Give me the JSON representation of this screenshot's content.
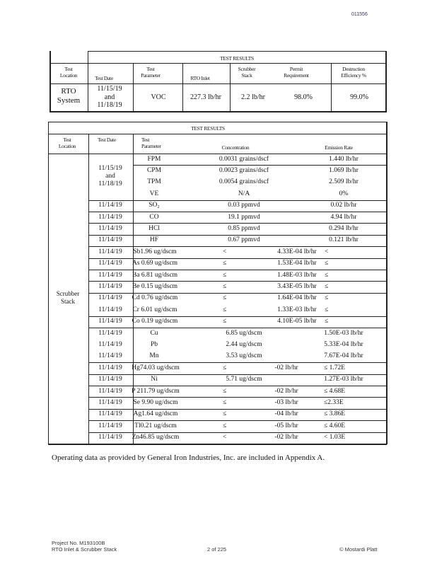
{
  "page_number_top": "011556",
  "table1": {
    "title": "TEST RESULTS",
    "headers": {
      "location": [
        "Test",
        "Location"
      ],
      "date": "Test Date",
      "parameter": [
        "Test",
        "Parameter"
      ],
      "rto_inlet": "RTO Inlet",
      "scrubber_stack": [
        "Scrubber",
        "Stack"
      ],
      "permit": [
        "Permit",
        "Requirement"
      ],
      "destruction": [
        "Destruction",
        "Efficiency %"
      ]
    },
    "row": {
      "location": [
        "RTO",
        "System"
      ],
      "date": [
        "11/15/19",
        "and",
        "11/18/19"
      ],
      "parameter": "VOC",
      "rto_inlet": "227.3 lb/hr",
      "scrubber_stack": "2.2 lb/hr",
      "permit": "98.0%",
      "destruction": "99.0%"
    }
  },
  "table2": {
    "title": "TEST RESULTS",
    "headers": {
      "location": [
        "Test",
        "Location"
      ],
      "date": "Test Date",
      "parameter": [
        "Test",
        "Parameter"
      ],
      "concentration": "Concentration",
      "emission_rate": "Emission Rate"
    },
    "location": [
      "Scrubber",
      "Stack"
    ],
    "group_date": [
      "11/15/19",
      "and",
      "11/18/19"
    ],
    "rows": [
      {
        "date": "",
        "param": "FPM",
        "conc": "0.0031 grains/dscf",
        "rate": "1.440 lb/hr"
      },
      {
        "date": "",
        "param": "CPM",
        "conc": "0.0023 grains/dscf",
        "rate": "1.069 lb/hr"
      },
      {
        "date": "",
        "param": "TPM",
        "conc": "0.0054 grains/dscf",
        "rate": "2.509 lb/hr"
      },
      {
        "date": "",
        "param": "VE",
        "conc": "N/A",
        "rate": "0%"
      },
      {
        "date": "11/14/19",
        "param": "SO₂",
        "conc": "0.03 ppmvd",
        "rate": "0.02 lb/hr"
      },
      {
        "date": "11/14/19",
        "param": "CO",
        "conc": "19.1 ppmvd",
        "rate": "4.94 lb/hr"
      },
      {
        "date": "11/14/19",
        "param": "HCl",
        "conc": "0.85 ppmvd",
        "rate": "0.294 lb/hr"
      },
      {
        "date": "11/14/19",
        "param": "HF",
        "conc": "0.67 ppmvd",
        "rate": "0.121 lb/hr"
      },
      {
        "date": "11/14/19",
        "a": "Sb1.96 ug/dscm",
        "b": "<",
        "c": "4.33E-04 lb/hr",
        "d": "<"
      },
      {
        "date": "11/14/19",
        "a": "As 0.69 ug/dscm",
        "b": "≤",
        "c": "1.53E-04 lb/hr",
        "d": "≤"
      },
      {
        "date": "11/14/19",
        "a": "Ba 6.81 ug/dscm",
        "b": "≤",
        "c": "1.48E-03 lb/hr",
        "d": "≤"
      },
      {
        "date": "11/14/19",
        "a": "Be 0.15 ug/dscm",
        "b": "≤",
        "c": "3.43E-05 lb/hr",
        "d": "≤"
      },
      {
        "date": "11/14/19",
        "a": "Cd 0.76 ug/dscm",
        "b": "≤",
        "c": "1.64E-04 lb/hr",
        "d": "≤"
      },
      {
        "date": "11/14/19",
        "a": "Cr 6.01 ug/dscm",
        "b": "≤",
        "c": "1.33E-03 lb/hr",
        "d": "≤"
      },
      {
        "date": "11/14/19",
        "a": "Co 0.19 ug/dscm",
        "b": "≤",
        "c": "4.10E-05 lb/hr",
        "d": "≤"
      },
      {
        "date": "11/14/19",
        "param": "Cu",
        "conc": "6.85 ug/dscm",
        "rate": "1.50E-03 lb/hr"
      },
      {
        "date": "11/14/19",
        "param": "Pb",
        "conc": "2.44 ug/dscm",
        "rate": "5.33E-04 lb/hr"
      },
      {
        "date": "11/14/19",
        "param": "Mn",
        "conc": "3.53 ug/dscm",
        "rate": "7.67E-04 lb/hr"
      },
      {
        "date": "11/14/19",
        "e": "Hg74.03 ug/dscm",
        "f": "≤",
        "g": "-02 lb/hr",
        "h": "≤ 1.72E"
      },
      {
        "date": "11/14/19",
        "param": "Ni",
        "conc": "5.71 ug/dscm",
        "rate": "1.27E-03 lb/hr"
      },
      {
        "date": "11/14/19",
        "e": "P 211.79 ug/dscm",
        "f": "≤",
        "g": "-02 lb/hr",
        "h": "≤ 4.68E"
      },
      {
        "date": "11/14/19",
        "e": "Se 9.90 ug/dscm",
        "f": "≤",
        "g": "-03 lb/hr",
        "h": "≤2.33E"
      },
      {
        "date": "11/14/19",
        "e": "Ag1.64 ug/dscm",
        "f": "≤",
        "g": "-04 lb/hr",
        "h": "≤ 3.86E"
      },
      {
        "date": "11/14/19",
        "e": "Tl0.21 ug/dscm",
        "f": "≤",
        "g": "-05 lb/hr",
        "h": "≤ 4.60E"
      },
      {
        "date": "11/14/19",
        "e": "Zn46.85 ug/dscm",
        "f": "<",
        "g": "-02 lb/hr",
        "h": "< 1.03E"
      }
    ]
  },
  "note": "Operating data as provided by General Iron Industries, Inc. are included in Appendix A.",
  "footer": {
    "project": "Project No. M193100B",
    "subject": "RTO Inlet & Scrubber Stack",
    "page": "2 of 225",
    "company": "© Mostardi Platt"
  }
}
